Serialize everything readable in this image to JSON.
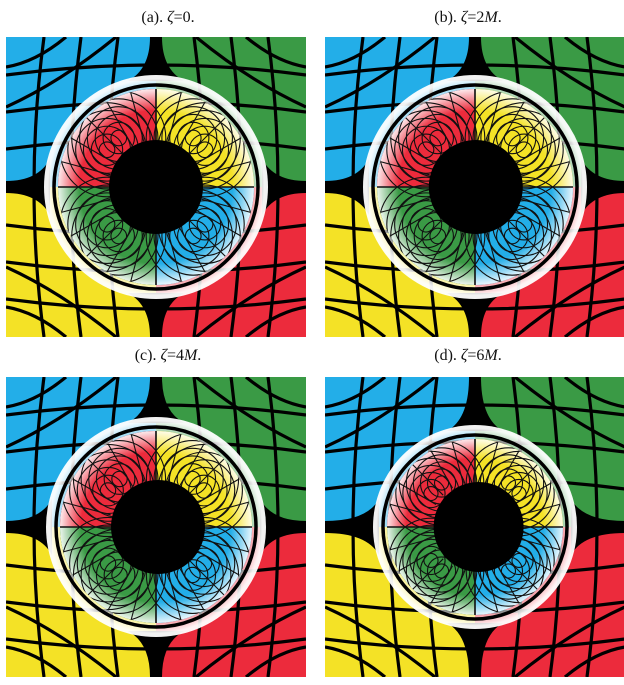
{
  "panels": [
    {
      "label": "(a).",
      "symbol": "ζ",
      "value": "=0."
    },
    {
      "label": "(b).",
      "symbol": "ζ",
      "value": "=2",
      "unit": "M",
      "end": "."
    },
    {
      "label": "(c).",
      "symbol": "ζ",
      "value": "=4",
      "unit": "M",
      "end": "."
    },
    {
      "label": "(d).",
      "symbol": "ζ",
      "value": "=6",
      "unit": "M",
      "end": "."
    }
  ],
  "quadrant_colors": {
    "top_left": "#23aee8",
    "top_right": "#3a9a45",
    "bottom_left": "#f4e226",
    "bottom_right": "#ec2b3c",
    "shadow": "#000000"
  }
}
